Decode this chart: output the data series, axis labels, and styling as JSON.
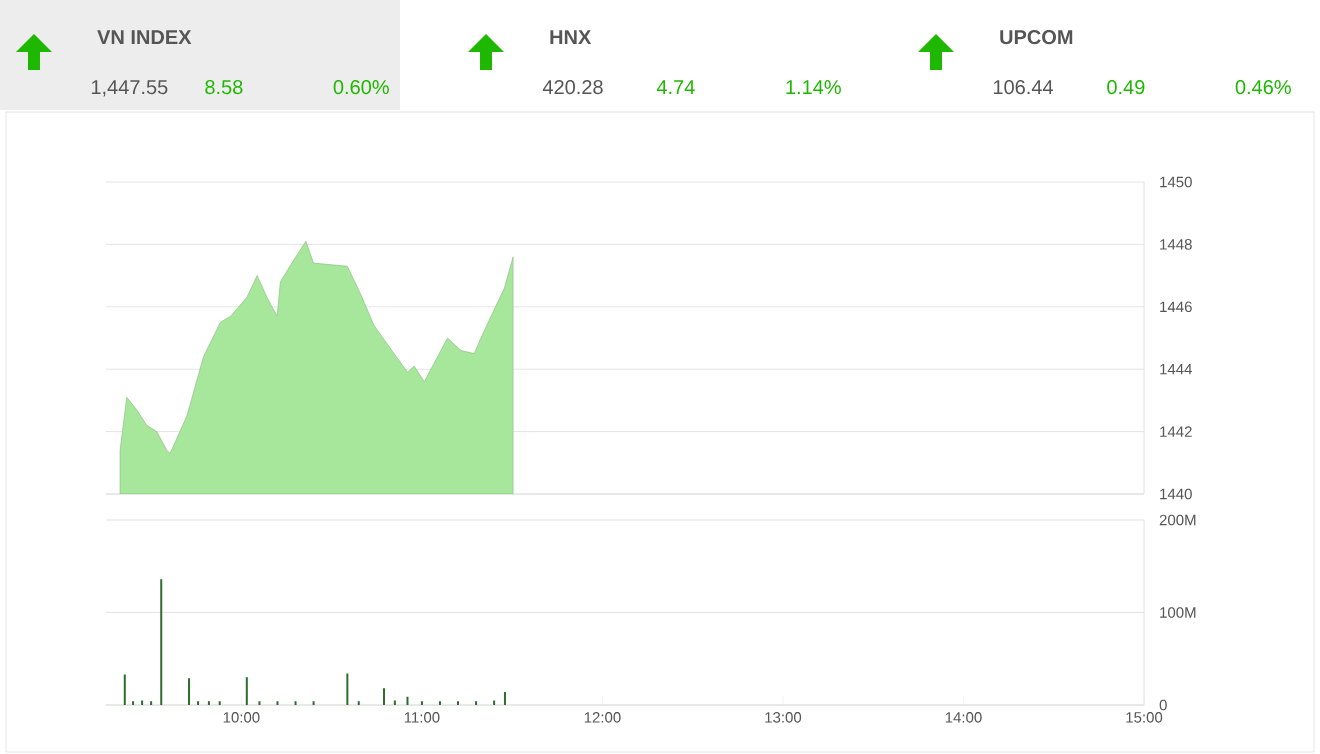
{
  "chart_data": [
    {
      "type": "other",
      "title": "VN INDEX",
      "annotations": [
        "1,447.55",
        "8.58",
        "0.60%"
      ]
    },
    {
      "type": "other",
      "title": "HNX",
      "annotations": [
        "420.28",
        "4.74",
        "1.14%"
      ]
    },
    {
      "type": "other",
      "title": "UPCOM",
      "annotations": [
        "106.44",
        "0.49",
        "0.46%"
      ]
    },
    {
      "type": "area",
      "color": "#a6e79b",
      "xlim": [
        9.25,
        15
      ],
      "ylim": [
        1440,
        1450
      ],
      "yticks": [
        1440,
        1442,
        1444,
        1446,
        1448,
        1450
      ],
      "grid": "y",
      "tick_labels": "y",
      "x": [
        9.328,
        9.365,
        9.42,
        9.476,
        9.531,
        9.587,
        9.605,
        9.698,
        9.79,
        9.883,
        9.94,
        10.03,
        10.087,
        10.142,
        10.198,
        10.216,
        10.29,
        10.357,
        10.4,
        10.587,
        10.661,
        10.735,
        10.809,
        10.92,
        10.957,
        11.013,
        11.068,
        11.142,
        11.216,
        11.29,
        11.327,
        11.383,
        11.457,
        11.505
      ],
      "values": [
        1441.4,
        1443.1,
        1442.7,
        1442.2,
        1442.0,
        1441.4,
        1441.3,
        1442.5,
        1444.4,
        1445.5,
        1445.7,
        1446.3,
        1447.0,
        1446.3,
        1445.7,
        1446.8,
        1447.5,
        1448.1,
        1447.4,
        1447.3,
        1446.4,
        1445.4,
        1444.8,
        1443.9,
        1444.1,
        1443.6,
        1444.2,
        1445.0,
        1444.6,
        1444.5,
        1445.0,
        1445.7,
        1446.6,
        1447.6
      ]
    },
    {
      "type": "bar",
      "color": "#2e6b2e",
      "xlim": [
        9.25,
        15
      ],
      "ylim": [
        0,
        200
      ],
      "grid": "y",
      "xticks": [
        {
          "value": 10,
          "label": "10:00"
        },
        {
          "value": 11,
          "label": "11:00"
        },
        {
          "value": 12,
          "label": "12:00"
        },
        {
          "value": 13,
          "label": "13:00"
        },
        {
          "value": 14,
          "label": "14:00"
        },
        {
          "value": 15,
          "label": "15:00"
        }
      ],
      "yticks": [
        {
          "value": 0,
          "label": "0"
        },
        {
          "value": 100,
          "label": "100M"
        },
        {
          "value": 200,
          "label": "200M"
        }
      ],
      "x": [
        9.354,
        9.4,
        9.45,
        9.5,
        9.556,
        9.71,
        9.76,
        9.82,
        9.88,
        10.03,
        10.1,
        10.2,
        10.3,
        10.4,
        10.587,
        10.65,
        10.79,
        10.85,
        10.92,
        11.0,
        11.1,
        11.2,
        11.3,
        11.4,
        11.46
      ],
      "values": [
        33,
        4,
        5,
        4,
        136,
        29,
        4,
        4,
        4,
        30,
        4,
        4,
        4,
        4,
        34,
        4,
        18,
        5,
        9,
        4,
        4,
        4,
        4,
        5,
        14
      ]
    }
  ]
}
